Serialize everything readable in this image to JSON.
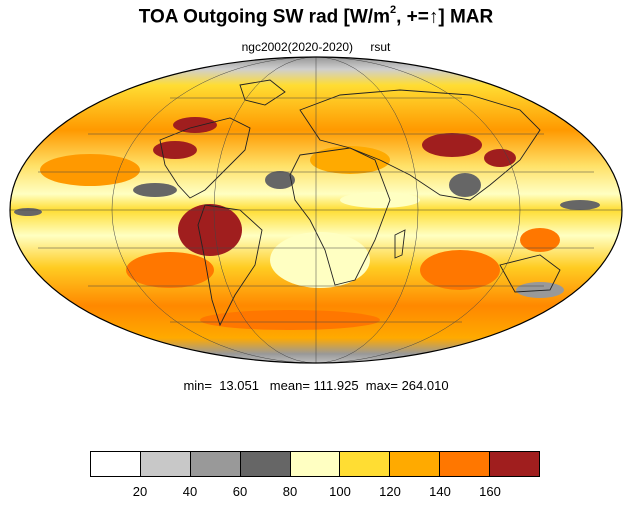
{
  "title": {
    "prefix": "TOA Outgoing SW rad [W/m",
    "sup": "2",
    "suffix": ", +=↑] MAR"
  },
  "subtitle": {
    "run": "ngc2002(2020-2020)",
    "variable": "rsut"
  },
  "stats": {
    "text": "min=  13.051   mean= 111.925  max= 264.010"
  },
  "colorbar": {
    "colors": [
      "#ffffff",
      "#c8c8c8",
      "#999999",
      "#666666",
      "#ffffc2",
      "#ffdd33",
      "#ffaa00",
      "#ff7700",
      "#a01e1e"
    ],
    "labels": [
      "20",
      "40",
      "60",
      "80",
      "100",
      "120",
      "140",
      "160"
    ]
  },
  "map": {
    "projection": "Mollweide",
    "region": "global",
    "gridlines": true,
    "coastlines": true
  }
}
